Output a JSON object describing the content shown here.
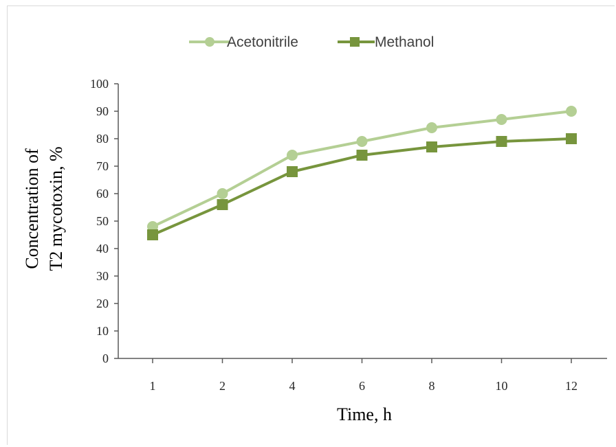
{
  "chart_data": {
    "type": "line",
    "categories": [
      "1",
      "2",
      "4",
      "6",
      "8",
      "10",
      "12"
    ],
    "series": [
      {
        "name": "Acetonitrile",
        "values": [
          48,
          60,
          74,
          79,
          84,
          87,
          90
        ],
        "color": "#b4cf94",
        "marker": "circle"
      },
      {
        "name": "Methanol",
        "values": [
          45,
          56,
          68,
          74,
          77,
          79,
          80
        ],
        "color": "#77953d",
        "marker": "square"
      }
    ],
    "xlabel": "Time, h",
    "ylabel_line1": "Concentration of",
    "ylabel_line2": "T2 mycotoxin, %",
    "ylim": [
      0,
      100
    ],
    "yticks": [
      0,
      10,
      20,
      30,
      40,
      50,
      60,
      70,
      80,
      90,
      100
    ],
    "legend_position": "top-center",
    "grid": false
  }
}
